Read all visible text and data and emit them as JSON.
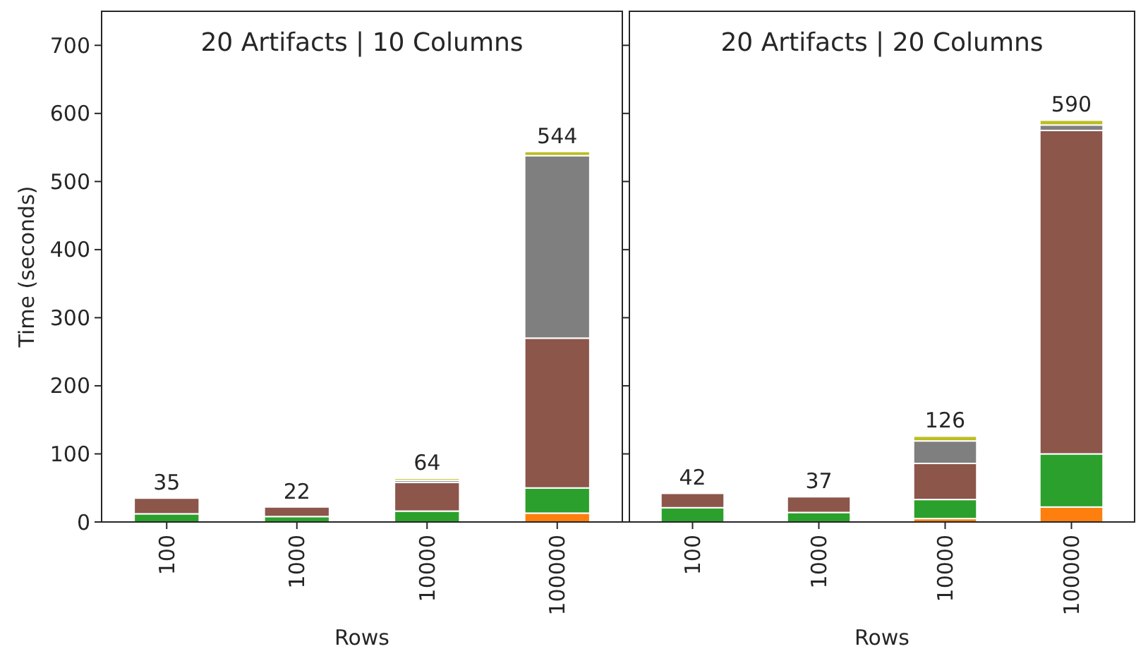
{
  "chart_data": [
    {
      "type": "bar",
      "title": "20 Artifacts | 10 Columns",
      "xlabel": "Rows",
      "ylabel": "Time (seconds)",
      "categories": [
        "100",
        "1000",
        "10000",
        "100000"
      ],
      "stacked": true,
      "ylim": [
        0,
        750
      ],
      "yticks": [
        0,
        100,
        200,
        300,
        400,
        500,
        600,
        700
      ],
      "grid": false,
      "totals": [
        "35",
        "22",
        "64",
        "544"
      ],
      "series": [
        {
          "color": "#ff7f0e",
          "values": [
            null,
            null,
            null,
            13
          ]
        },
        {
          "color": "#2ca02c",
          "values": [
            12,
            8,
            16,
            37
          ]
        },
        {
          "color": "#8c564b",
          "values": [
            23,
            14,
            42,
            220
          ]
        },
        {
          "color": "#7f7f7f",
          "values": [
            null,
            null,
            3,
            268
          ]
        },
        {
          "color": "#bcbd22",
          "values": [
            null,
            null,
            3,
            6
          ]
        }
      ]
    },
    {
      "type": "bar",
      "title": "20 Artifacts | 20 Columns",
      "xlabel": "Rows",
      "categories": [
        "100",
        "1000",
        "10000",
        "100000"
      ],
      "stacked": true,
      "ylim": [
        0,
        750
      ],
      "yticks": [
        0,
        100,
        200,
        300,
        400,
        500,
        600,
        700
      ],
      "tick_labels": "x",
      "grid": false,
      "totals": [
        "42",
        "37",
        "126",
        "590"
      ],
      "series": [
        {
          "color": "#ff7f0e",
          "values": [
            null,
            null,
            5,
            22
          ]
        },
        {
          "color": "#2ca02c",
          "values": [
            21,
            14,
            28,
            78
          ]
        },
        {
          "color": "#8c564b",
          "values": [
            21,
            23,
            53,
            475
          ]
        },
        {
          "color": "#7f7f7f",
          "values": [
            null,
            null,
            33,
            8
          ]
        },
        {
          "color": "#bcbd22",
          "values": [
            null,
            null,
            7,
            7
          ]
        }
      ]
    }
  ]
}
